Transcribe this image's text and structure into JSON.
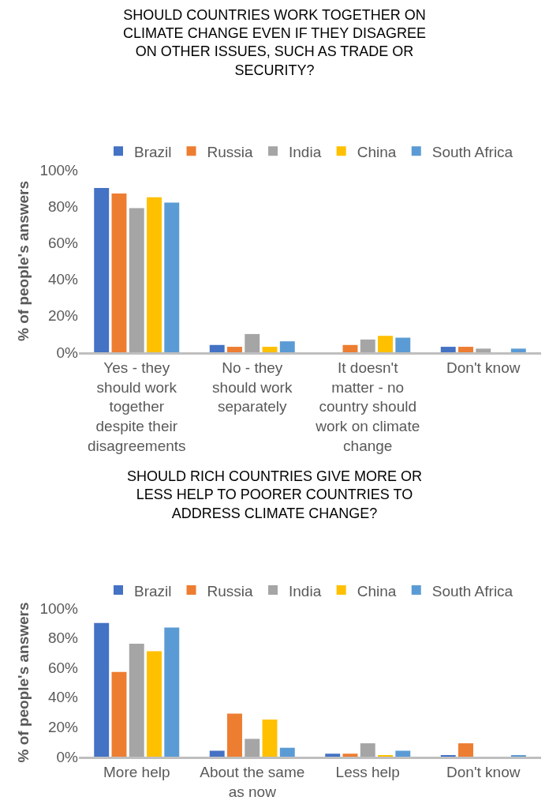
{
  "chart_data": [
    {
      "type": "bar",
      "title": "SHOULD COUNTRIES WORK TOGETHER ON CLIMATE CHANGE EVEN IF THEY DISAGREE ON OTHER ISSUES, SUCH AS TRADE OR SECURITY?",
      "ylabel": "% of people's answers",
      "categories": [
        "Yes - they should work together despite their disagreements",
        "No - they should work separately",
        "It doesn't matter - no country should work on climate change",
        "Don't know"
      ],
      "series": [
        {
          "name": "Brazil",
          "color": "#4472c4",
          "values": [
            90,
            4,
            0,
            3
          ]
        },
        {
          "name": "Russia",
          "color": "#ed7d31",
          "values": [
            87,
            3,
            4,
            3
          ]
        },
        {
          "name": "India",
          "color": "#a5a5a5",
          "values": [
            79,
            10,
            7,
            2
          ]
        },
        {
          "name": "China",
          "color": "#ffc000",
          "values": [
            85,
            3,
            9,
            0
          ]
        },
        {
          "name": "South Africa",
          "color": "#5b9bd5",
          "values": [
            82,
            6,
            8,
            2
          ]
        }
      ],
      "ylim": [
        0,
        100
      ],
      "yticks": [
        {
          "value": 0,
          "label": "0%"
        },
        {
          "value": 20,
          "label": "20%"
        },
        {
          "value": 40,
          "label": "40%"
        },
        {
          "value": 60,
          "label": "60%"
        },
        {
          "value": 80,
          "label": "80%"
        },
        {
          "value": 100,
          "label": "100%"
        }
      ],
      "grid": false,
      "legend": "top"
    },
    {
      "type": "bar",
      "title": "SHOULD RICH COUNTRIES GIVE MORE OR LESS HELP TO POORER COUNTRIES TO ADDRESS CLIMATE CHANGE?",
      "ylabel": "% of people's answers",
      "categories": [
        "More help",
        "About the same as now",
        "Less help",
        "Don't know"
      ],
      "series": [
        {
          "name": "Brazil",
          "color": "#4472c4",
          "values": [
            90,
            4,
            2,
            1
          ]
        },
        {
          "name": "Russia",
          "color": "#ed7d31",
          "values": [
            57,
            29,
            2,
            9
          ]
        },
        {
          "name": "India",
          "color": "#a5a5a5",
          "values": [
            76,
            12,
            9,
            0
          ]
        },
        {
          "name": "China",
          "color": "#ffc000",
          "values": [
            71,
            25,
            1,
            0
          ]
        },
        {
          "name": "South Africa",
          "color": "#5b9bd5",
          "values": [
            87,
            6,
            4,
            1
          ]
        }
      ],
      "ylim": [
        0,
        100
      ],
      "yticks": [
        {
          "value": 0,
          "label": "0%"
        },
        {
          "value": 20,
          "label": "20%"
        },
        {
          "value": 40,
          "label": "40%"
        },
        {
          "value": 60,
          "label": "60%"
        },
        {
          "value": 80,
          "label": "80%"
        },
        {
          "value": 100,
          "label": "100%"
        }
      ],
      "grid": false,
      "legend": "top"
    }
  ]
}
